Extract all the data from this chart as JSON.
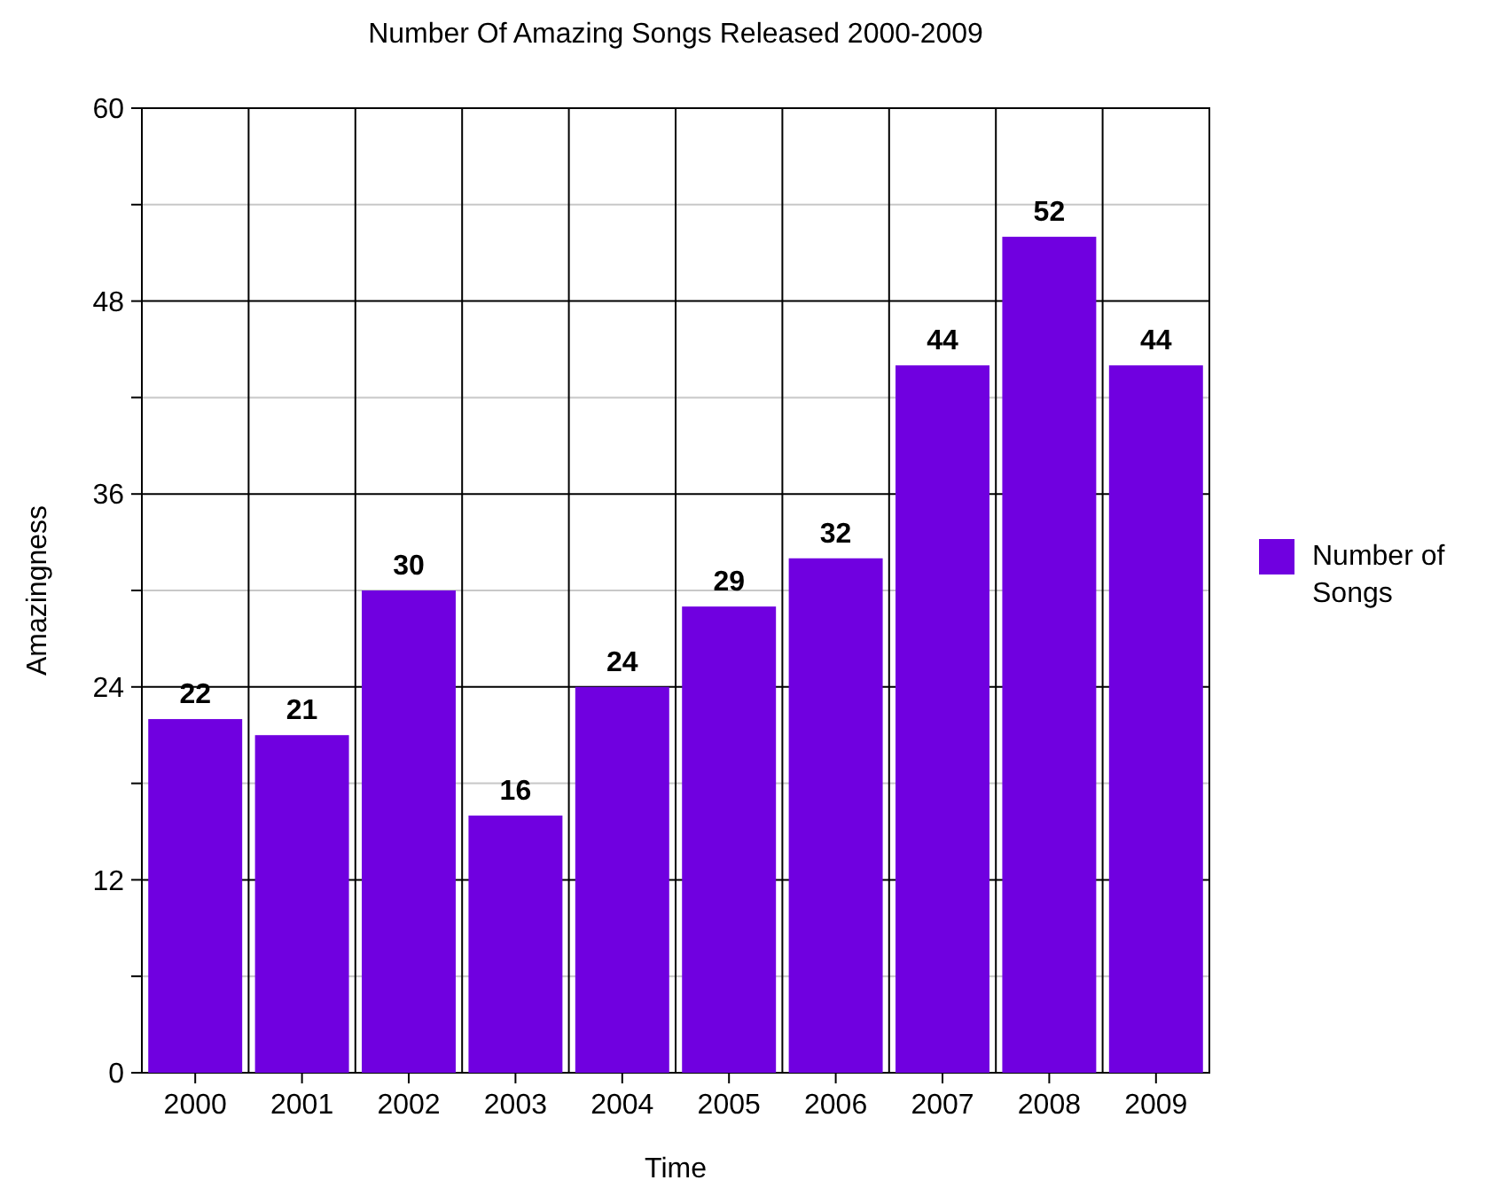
{
  "chart_data": {
    "type": "bar",
    "title": "Number Of Amazing Songs Released 2000-2009",
    "xlabel": "Time",
    "ylabel": "Amazingness",
    "categories": [
      "2000",
      "2001",
      "2002",
      "2003",
      "2004",
      "2005",
      "2006",
      "2007",
      "2008",
      "2009"
    ],
    "series": [
      {
        "name": "Number of Songs",
        "color": "#7000e0",
        "values": [
          22,
          21,
          30,
          16,
          24,
          29,
          32,
          44,
          52,
          44
        ]
      }
    ],
    "ylim": [
      0,
      60
    ],
    "yticks": [
      0,
      {
        "value": 6,
        "label": null
      },
      12,
      {
        "value": 18,
        "label": null
      },
      24,
      {
        "value": 30,
        "label": null
      },
      36,
      {
        "value": 42,
        "label": null
      },
      48,
      {
        "value": 54,
        "label": null
      },
      60
    ],
    "grid": true,
    "legend": "right",
    "data_labels": true
  }
}
